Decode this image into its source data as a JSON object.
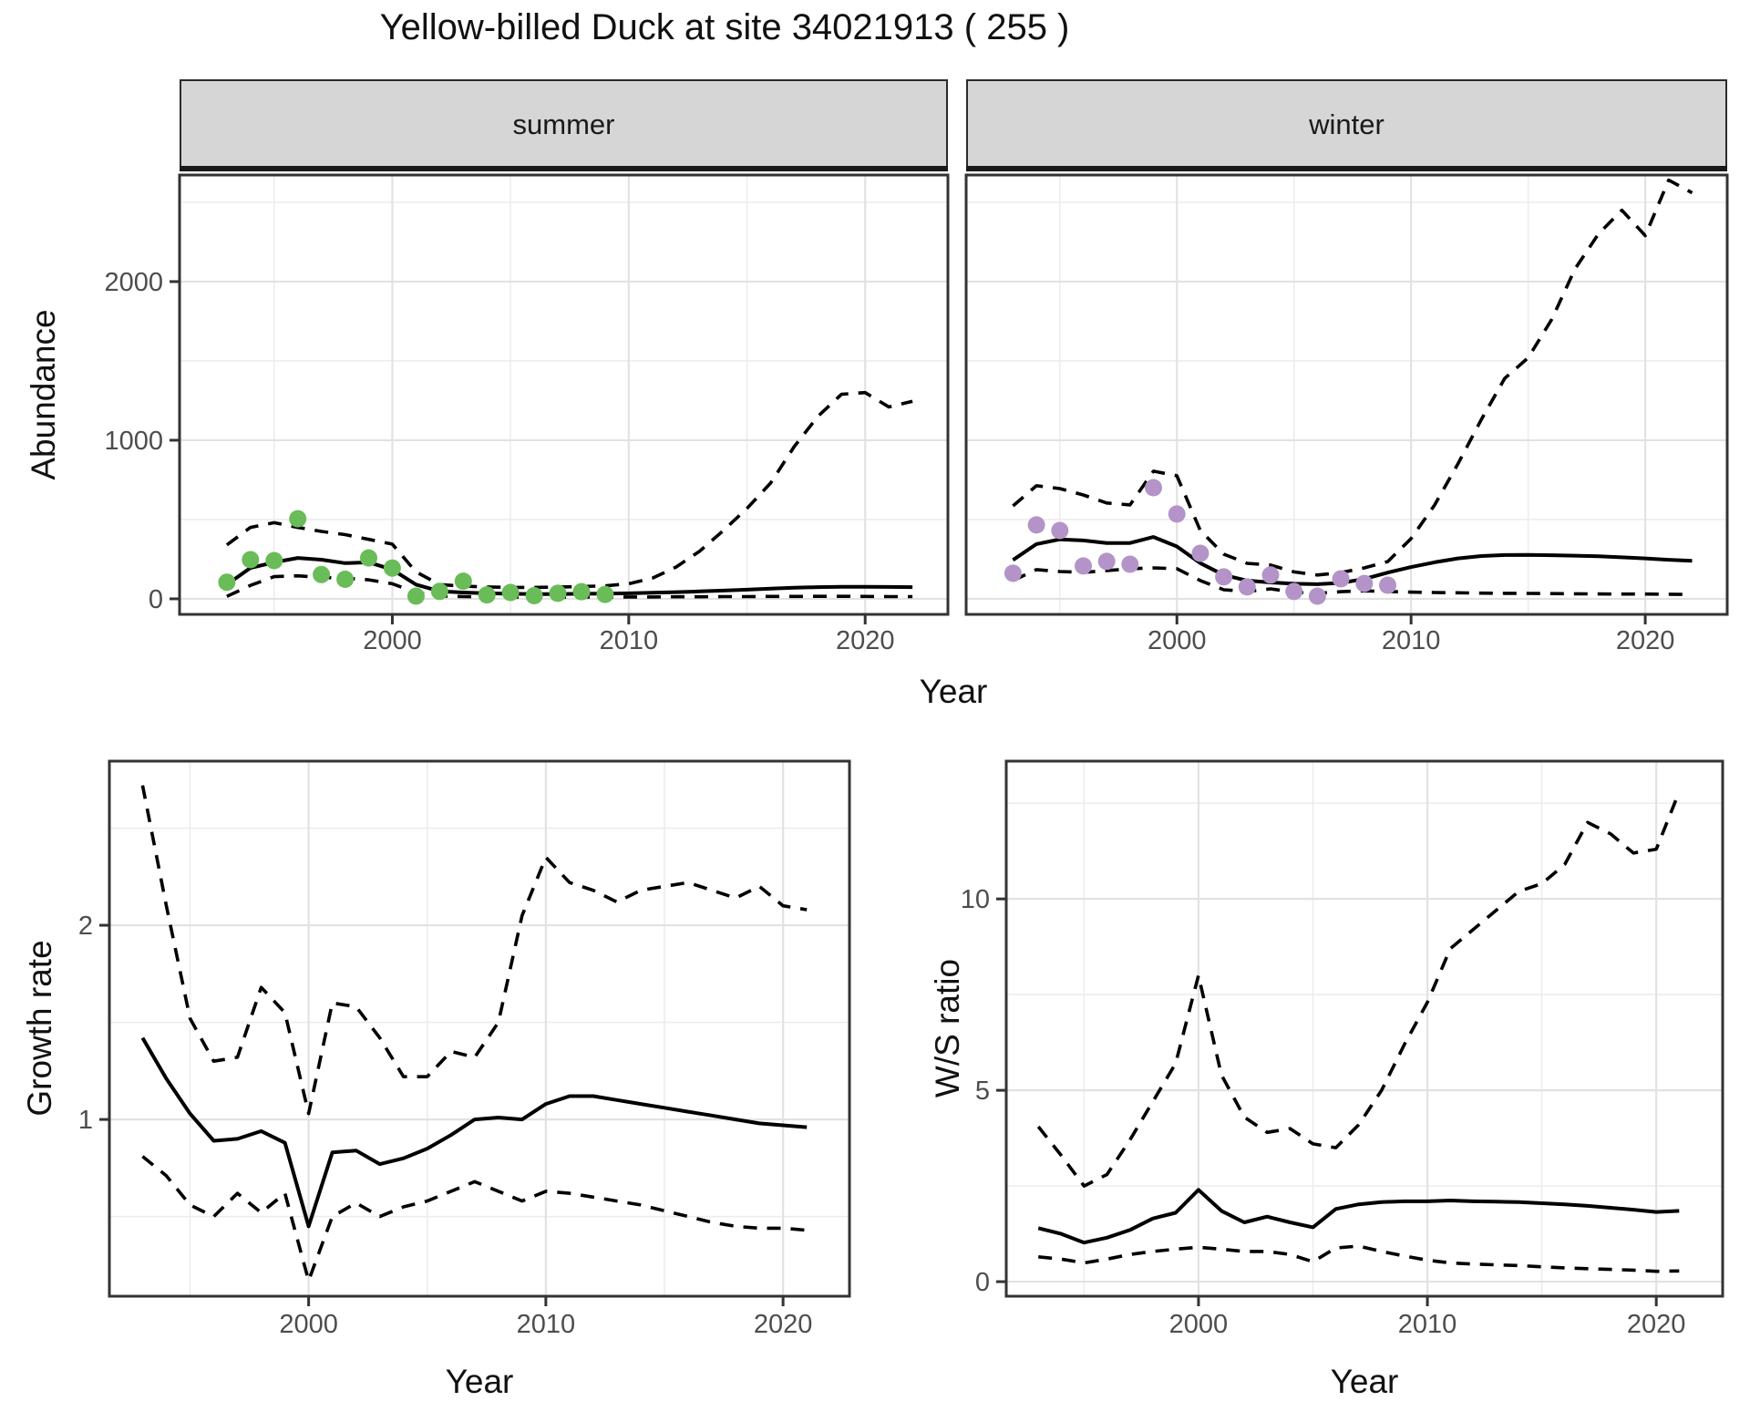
{
  "title": "Yellow-billed Duck at site 34021913 ( 255 )",
  "facets": {
    "summer": "summer",
    "winter": "winter"
  },
  "axis_titles": {
    "abundance": "Abundance",
    "year_top": "Year",
    "growth": "Growth rate",
    "ws": "W/S ratio",
    "year_bottom_left": "Year",
    "year_bottom_right": "Year"
  },
  "colors": {
    "summer_points": "#6abc58",
    "winter_points": "#b494c8",
    "line": "#000000",
    "grid_major": "#e2e2e2",
    "grid_minor": "#ececec",
    "strip_bg": "#d6d6d6",
    "panel_border": "#333333",
    "tick_text": "#4d4d4d",
    "title_text": "#111111"
  },
  "chart_data": [
    {
      "id": "abundance-summer",
      "type": "line",
      "facet": "summer",
      "xlabel": "Year",
      "ylabel": "Abundance",
      "xlim": [
        1991,
        2023.5
      ],
      "ylim": [
        -98,
        2672
      ],
      "x_ticks": [
        2000,
        2010,
        2020
      ],
      "x_minor": [
        1995,
        2005,
        2015
      ],
      "y_ticks": [
        0,
        1000,
        2000
      ],
      "y_minor": [
        500,
        1500,
        2500
      ],
      "show_y_tick_labels": true,
      "years": [
        1993,
        1994,
        1995,
        1996,
        1997,
        1998,
        1999,
        2000,
        2001,
        2002,
        2003,
        2004,
        2005,
        2006,
        2007,
        2008,
        2009,
        2010,
        2011,
        2012,
        2013,
        2014,
        2015,
        2016,
        2017,
        2018,
        2019,
        2020,
        2021,
        2022
      ],
      "series": [
        {
          "name": "fit",
          "style": "solid",
          "values": [
            90,
            195,
            230,
            258,
            247,
            225,
            230,
            185,
            90,
            48,
            40,
            35,
            32,
            30,
            30,
            32,
            33,
            35,
            38,
            42,
            47,
            52,
            58,
            64,
            70,
            74,
            76,
            76,
            75,
            74
          ]
        },
        {
          "name": "upper_ci",
          "style": "dashed",
          "values": [
            340,
            450,
            480,
            450,
            425,
            405,
            375,
            345,
            170,
            90,
            80,
            75,
            72,
            72,
            74,
            78,
            82,
            95,
            130,
            200,
            300,
            430,
            570,
            730,
            960,
            1150,
            1290,
            1300,
            1210,
            1245
          ]
        },
        {
          "name": "lower_ci",
          "style": "dashed",
          "values": [
            15,
            85,
            140,
            145,
            135,
            130,
            120,
            95,
            40,
            18,
            14,
            12,
            11,
            10,
            10,
            11,
            11,
            12,
            12,
            13,
            13,
            14,
            14,
            15,
            15,
            16,
            16,
            15,
            14,
            14
          ]
        },
        {
          "name": "observed",
          "style": "points",
          "color_key": "summer_points",
          "years": [
            1993,
            1994,
            1995,
            1996,
            1997,
            1998,
            1999,
            2000,
            2001,
            2002,
            2003,
            2004,
            2005,
            2006,
            2007,
            2008,
            2009
          ],
          "values": [
            105,
            247,
            241,
            505,
            153,
            123,
            258,
            194,
            17,
            47,
            111,
            25,
            40,
            20,
            35,
            45,
            28
          ]
        }
      ]
    },
    {
      "id": "abundance-winter",
      "type": "line",
      "facet": "winter",
      "xlabel": "Year",
      "ylabel": "Abundance",
      "xlim": [
        1991,
        2023.5
      ],
      "ylim": [
        -98,
        2672
      ],
      "x_ticks": [
        2000,
        2010,
        2020
      ],
      "x_minor": [
        1995,
        2005,
        2015
      ],
      "y_ticks": [
        0,
        1000,
        2000
      ],
      "y_minor": [
        500,
        1500,
        2500
      ],
      "show_y_tick_labels": false,
      "years": [
        1993,
        1994,
        1995,
        1996,
        1997,
        1998,
        1999,
        2000,
        2001,
        2002,
        2003,
        2004,
        2005,
        2006,
        2007,
        2008,
        2009,
        2010,
        2011,
        2012,
        2013,
        2014,
        2015,
        2016,
        2017,
        2018,
        2019,
        2020,
        2021,
        2022
      ],
      "series": [
        {
          "name": "fit",
          "style": "solid",
          "values": [
            245,
            345,
            375,
            368,
            352,
            352,
            390,
            330,
            225,
            150,
            115,
            103,
            95,
            92,
            100,
            125,
            165,
            200,
            230,
            255,
            270,
            276,
            277,
            275,
            272,
            268,
            262,
            255,
            246,
            240
          ]
        },
        {
          "name": "upper_ci",
          "style": "dashed",
          "values": [
            586,
            713,
            695,
            655,
            604,
            592,
            805,
            776,
            431,
            282,
            224,
            213,
            170,
            150,
            165,
            195,
            235,
            380,
            590,
            850,
            1130,
            1390,
            1520,
            1760,
            2080,
            2300,
            2450,
            2290,
            2640,
            2560
          ]
        },
        {
          "name": "lower_ci",
          "style": "dashed",
          "values": [
            115,
            184,
            172,
            167,
            178,
            190,
            195,
            190,
            115,
            57,
            46,
            63,
            42,
            35,
            45,
            50,
            46,
            42,
            40,
            38,
            36,
            35,
            34,
            33,
            32,
            31,
            30,
            30,
            29,
            28
          ]
        },
        {
          "name": "observed",
          "style": "points",
          "color_key": "winter_points",
          "years": [
            1993,
            1994,
            1995,
            1996,
            1997,
            1998,
            1999,
            2000,
            2001,
            2002,
            2003,
            2004,
            2005,
            2006,
            2007,
            2008,
            2009
          ],
          "values": [
            161,
            466,
            431,
            207,
            236,
            218,
            701,
            535,
            287,
            138,
            75,
            150,
            46,
            17,
            126,
            97,
            86
          ]
        }
      ]
    },
    {
      "id": "growth-rate",
      "type": "line",
      "xlabel": "Year",
      "ylabel": "Growth rate",
      "xlim": [
        1991.6,
        2022.8
      ],
      "ylim": [
        0.09,
        2.845
      ],
      "x_ticks": [
        2000,
        2010,
        2020
      ],
      "x_minor": [
        1995,
        2005,
        2015
      ],
      "y_ticks": [
        1,
        2
      ],
      "y_minor": [
        0.5,
        1.5,
        2.5
      ],
      "show_y_tick_labels": true,
      "years": [
        1993,
        1994,
        1995,
        1996,
        1997,
        1998,
        1999,
        2000,
        2001,
        2002,
        2003,
        2004,
        2005,
        2006,
        2007,
        2008,
        2009,
        2010,
        2011,
        2012,
        2013,
        2014,
        2015,
        2016,
        2017,
        2018,
        2019,
        2020,
        2021
      ],
      "series": [
        {
          "name": "fit",
          "style": "solid",
          "values": [
            1.42,
            1.21,
            1.03,
            0.89,
            0.9,
            0.94,
            0.88,
            0.45,
            0.83,
            0.84,
            0.77,
            0.8,
            0.85,
            0.92,
            1.0,
            1.01,
            1.0,
            1.08,
            1.12,
            1.12,
            1.1,
            1.08,
            1.06,
            1.04,
            1.02,
            1.0,
            0.98,
            0.97,
            0.96
          ]
        },
        {
          "name": "upper_ci",
          "style": "dashed",
          "values": [
            2.72,
            2.1,
            1.52,
            1.3,
            1.32,
            1.68,
            1.55,
            1.03,
            1.6,
            1.58,
            1.42,
            1.22,
            1.22,
            1.35,
            1.32,
            1.5,
            2.05,
            2.35,
            2.22,
            2.18,
            2.12,
            2.18,
            2.2,
            2.22,
            2.18,
            2.14,
            2.2,
            2.1,
            2.08
          ]
        },
        {
          "name": "lower_ci",
          "style": "dashed",
          "values": [
            0.81,
            0.71,
            0.56,
            0.5,
            0.62,
            0.52,
            0.62,
            0.17,
            0.5,
            0.57,
            0.5,
            0.55,
            0.58,
            0.63,
            0.68,
            0.63,
            0.58,
            0.63,
            0.62,
            0.6,
            0.58,
            0.56,
            0.53,
            0.5,
            0.47,
            0.45,
            0.44,
            0.44,
            0.43
          ]
        }
      ]
    },
    {
      "id": "ws-ratio",
      "type": "line",
      "xlabel": "Year",
      "ylabel": "W/S ratio",
      "xlim": [
        1991.6,
        2022.9
      ],
      "ylim": [
        -0.38,
        13.6
      ],
      "x_ticks": [
        2000,
        2010,
        2020
      ],
      "x_minor": [
        1995,
        2005,
        2015
      ],
      "y_ticks": [
        0,
        5,
        10
      ],
      "y_minor": [
        2.5,
        7.5,
        12.5
      ],
      "show_y_tick_labels": true,
      "years": [
        1993,
        1994,
        1995,
        1996,
        1997,
        1998,
        1999,
        2000,
        2001,
        2002,
        2003,
        2004,
        2005,
        2006,
        2007,
        2008,
        2009,
        2010,
        2011,
        2012,
        2013,
        2014,
        2015,
        2016,
        2017,
        2018,
        2019,
        2020,
        2021
      ],
      "series": [
        {
          "name": "fit",
          "style": "solid",
          "values": [
            1.4,
            1.25,
            1.02,
            1.15,
            1.35,
            1.65,
            1.8,
            2.4,
            1.85,
            1.55,
            1.7,
            1.55,
            1.42,
            1.9,
            2.02,
            2.08,
            2.1,
            2.1,
            2.12,
            2.1,
            2.09,
            2.08,
            2.05,
            2.02,
            1.98,
            1.93,
            1.88,
            1.82,
            1.85
          ]
        },
        {
          "name": "upper_ci",
          "style": "dashed",
          "values": [
            4.05,
            3.3,
            2.5,
            2.8,
            3.7,
            4.7,
            5.7,
            8.0,
            5.4,
            4.3,
            3.9,
            4.0,
            3.6,
            3.5,
            4.1,
            5.0,
            6.2,
            7.3,
            8.7,
            9.2,
            9.7,
            10.2,
            10.4,
            10.9,
            12.0,
            11.7,
            11.2,
            11.3,
            12.8
          ]
        },
        {
          "name": "lower_ci",
          "style": "dashed",
          "values": [
            0.65,
            0.59,
            0.49,
            0.59,
            0.71,
            0.79,
            0.85,
            0.9,
            0.85,
            0.79,
            0.79,
            0.71,
            0.52,
            0.88,
            0.93,
            0.79,
            0.67,
            0.56,
            0.49,
            0.46,
            0.44,
            0.42,
            0.39,
            0.36,
            0.34,
            0.32,
            0.3,
            0.27,
            0.28
          ]
        }
      ]
    }
  ]
}
